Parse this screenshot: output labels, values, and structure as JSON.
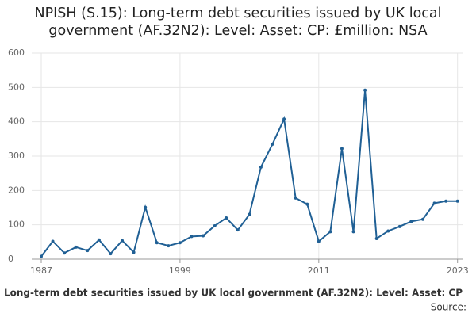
{
  "chart_data": {
    "type": "line",
    "title": "NPISH (S.15): Long-term debt securities issued by UK local government (AF.32N2): Level: Asset: CP: £million: NSA",
    "footer": ": Long-term debt securities issued by UK local government (AF.32N2): Level: Asset: CP",
    "source": "Source:",
    "x": [
      1987,
      1988,
      1989,
      1990,
      1991,
      1992,
      1993,
      1994,
      1995,
      1996,
      1997,
      1998,
      1999,
      2000,
      2001,
      2002,
      2003,
      2004,
      2005,
      2006,
      2007,
      2008,
      2009,
      2010,
      2011,
      2012,
      2013,
      2014,
      2015,
      2016,
      2017,
      2018,
      2019,
      2020,
      2021,
      2022,
      2023
    ],
    "series": [
      {
        "name": "NPISH (S.15): Long-term debt securities issued by UK local government (AF.32N2): Level: Asset: CP: £million: NSA",
        "color": "#206095",
        "values": [
          8,
          52,
          18,
          35,
          25,
          56,
          16,
          54,
          20,
          151,
          48,
          39,
          48,
          66,
          68,
          97,
          120,
          85,
          130,
          268,
          335,
          408,
          178,
          160,
          52,
          80,
          322,
          80,
          492,
          60,
          82,
          95,
          110,
          116,
          163,
          169,
          169
        ]
      }
    ],
    "xlim": [
      1986.5,
      2023.5
    ],
    "xticks": [
      1987,
      1999,
      2011,
      2023
    ],
    "ylim": [
      0,
      600
    ],
    "yticks": [
      0,
      100,
      200,
      300,
      400,
      500,
      600
    ],
    "grid": true
  }
}
